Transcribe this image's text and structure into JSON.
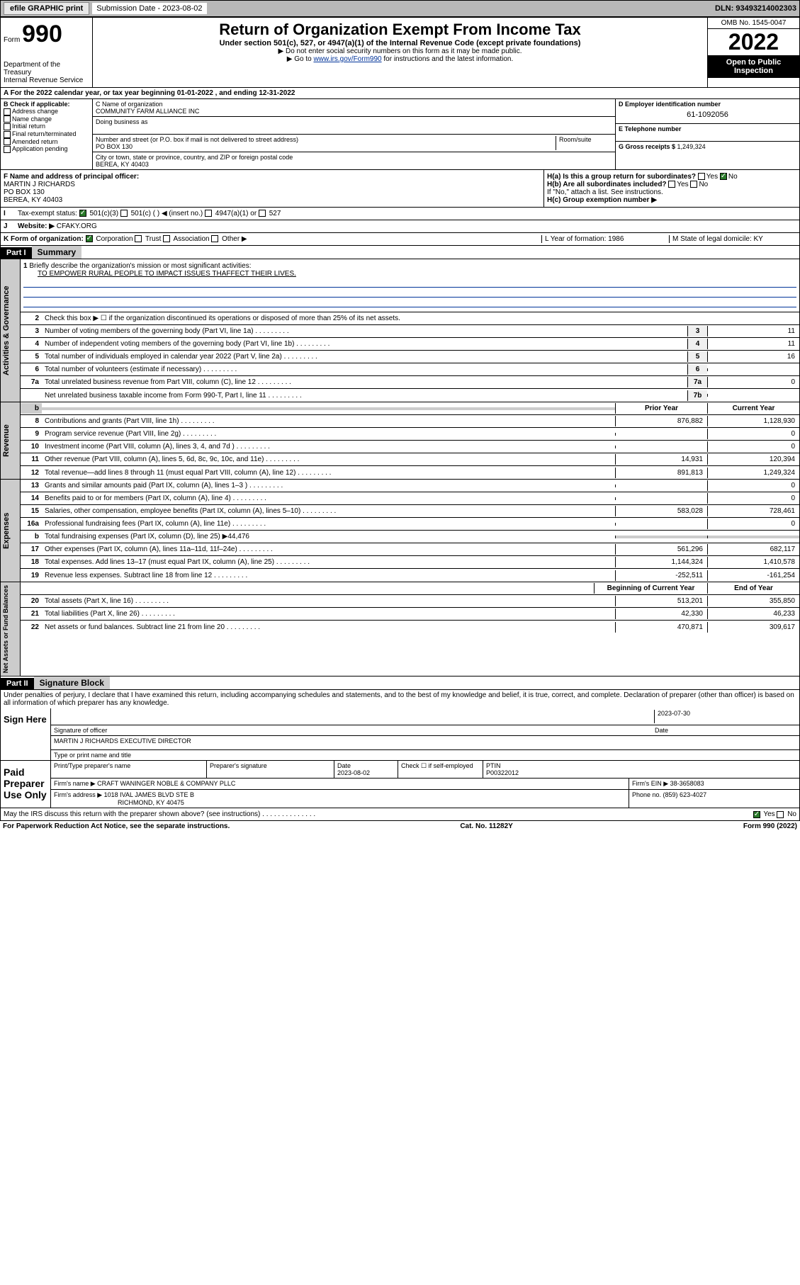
{
  "top": {
    "efile": "efile GRAPHIC print",
    "sub_label": "Submission Date - 2023-08-02",
    "dln": "DLN: 93493214002303"
  },
  "header": {
    "form_prefix": "Form",
    "form_num": "990",
    "title": "Return of Organization Exempt From Income Tax",
    "subtitle": "Under section 501(c), 527, or 4947(a)(1) of the Internal Revenue Code (except private foundations)",
    "note1": "▶ Do not enter social security numbers on this form as it may be made public.",
    "note2_pre": "▶ Go to ",
    "note2_link": "www.irs.gov/Form990",
    "note2_post": " for instructions and the latest information.",
    "omb": "OMB No. 1545-0047",
    "year": "2022",
    "open": "Open to Public Inspection",
    "dept": "Department of the Treasury\nInternal Revenue Service"
  },
  "lineA": "For the 2022 calendar year, or tax year beginning 01-01-2022    , and ending 12-31-2022",
  "colB": {
    "title": "B Check if applicable:",
    "items": [
      "Address change",
      "Name change",
      "Initial return",
      "Final return/terminated",
      "Amended return",
      "Application pending"
    ]
  },
  "colC": {
    "name_label": "C Name of organization",
    "name": "COMMUNITY FARM ALLIANCE INC",
    "dba_label": "Doing business as",
    "street_label": "Number and street (or P.O. box if mail is not delivered to street address)",
    "room_label": "Room/suite",
    "street": "PO BOX 130",
    "city_label": "City or town, state or province, country, and ZIP or foreign postal code",
    "city": "BEREA, KY  40403"
  },
  "colD": {
    "ein_label": "D Employer identification number",
    "ein": "61-1092056",
    "phone_label": "E Telephone number",
    "gross_label": "G Gross receipts $ ",
    "gross": "1,249,324"
  },
  "f": {
    "label": "F  Name and address of principal officer:",
    "name": "MARTIN J RICHARDS",
    "addr1": "PO BOX 130",
    "addr2": "BEREA, KY  40403"
  },
  "h": {
    "a": "H(a)  Is this a group return for subordinates?",
    "b": "H(b)  Are all subordinates included?",
    "b_note": "If \"No,\" attach a list. See instructions.",
    "c": "H(c)  Group exemption number ▶",
    "yes": "Yes",
    "no": "No"
  },
  "i": {
    "label": "Tax-exempt status:",
    "opt1": "501(c)(3)",
    "opt2": "501(c) (  ) ◀ (insert no.)",
    "opt3": "4947(a)(1) or",
    "opt4": "527"
  },
  "j": {
    "label": "Website: ▶",
    "val": "CFAKY.ORG"
  },
  "k": {
    "label": "K Form of organization:",
    "opts": [
      "Corporation",
      "Trust",
      "Association",
      "Other ▶"
    ],
    "l": "L Year of formation: 1986",
    "m": "M State of legal domicile: KY"
  },
  "part1": {
    "hdr": "Part I",
    "title": "Summary",
    "line1_label": "Briefly describe the organization's mission or most significant activities:",
    "line1_val": "TO EMPOWER RURAL PEOPLE TO IMPACT ISSUES THAFFECT THEIR LIVES.",
    "lines_gov": [
      {
        "n": "2",
        "t": "Check this box ▶ ☐  if the organization discontinued its operations or disposed of more than 25% of its net assets."
      },
      {
        "n": "3",
        "t": "Number of voting members of the governing body (Part VI, line 1a)",
        "box": "3",
        "v": "11"
      },
      {
        "n": "4",
        "t": "Number of independent voting members of the governing body (Part VI, line 1b)",
        "box": "4",
        "v": "11"
      },
      {
        "n": "5",
        "t": "Total number of individuals employed in calendar year 2022 (Part V, line 2a)",
        "box": "5",
        "v": "16"
      },
      {
        "n": "6",
        "t": "Total number of volunteers (estimate if necessary)",
        "box": "6",
        "v": ""
      },
      {
        "n": "7a",
        "t": "Total unrelated business revenue from Part VIII, column (C), line 12",
        "box": "7a",
        "v": "0"
      },
      {
        "n": "",
        "t": "Net unrelated business taxable income from Form 990-T, Part I, line 11",
        "box": "7b",
        "v": ""
      }
    ],
    "hdr_prior": "Prior Year",
    "hdr_curr": "Current Year",
    "lines_rev": [
      {
        "n": "8",
        "t": "Contributions and grants (Part VIII, line 1h)",
        "p": "876,882",
        "c": "1,128,930"
      },
      {
        "n": "9",
        "t": "Program service revenue (Part VIII, line 2g)",
        "p": "",
        "c": "0"
      },
      {
        "n": "10",
        "t": "Investment income (Part VIII, column (A), lines 3, 4, and 7d )",
        "p": "",
        "c": "0"
      },
      {
        "n": "11",
        "t": "Other revenue (Part VIII, column (A), lines 5, 6d, 8c, 9c, 10c, and 11e)",
        "p": "14,931",
        "c": "120,394"
      },
      {
        "n": "12",
        "t": "Total revenue—add lines 8 through 11 (must equal Part VIII, column (A), line 12)",
        "p": "891,813",
        "c": "1,249,324"
      }
    ],
    "lines_exp": [
      {
        "n": "13",
        "t": "Grants and similar amounts paid (Part IX, column (A), lines 1–3 )",
        "p": "",
        "c": "0"
      },
      {
        "n": "14",
        "t": "Benefits paid to or for members (Part IX, column (A), line 4)",
        "p": "",
        "c": "0"
      },
      {
        "n": "15",
        "t": "Salaries, other compensation, employee benefits (Part IX, column (A), lines 5–10)",
        "p": "583,028",
        "c": "728,461"
      },
      {
        "n": "16a",
        "t": "Professional fundraising fees (Part IX, column (A), line 11e)",
        "p": "",
        "c": "0"
      },
      {
        "n": "b",
        "t": "Total fundraising expenses (Part IX, column (D), line 25) ▶44,476",
        "p": null,
        "c": null
      },
      {
        "n": "17",
        "t": "Other expenses (Part IX, column (A), lines 11a–11d, 11f–24e)",
        "p": "561,296",
        "c": "682,117"
      },
      {
        "n": "18",
        "t": "Total expenses. Add lines 13–17 (must equal Part IX, column (A), line 25)",
        "p": "1,144,324",
        "c": "1,410,578"
      },
      {
        "n": "19",
        "t": "Revenue less expenses. Subtract line 18 from line 12",
        "p": "-252,511",
        "c": "-161,254"
      }
    ],
    "hdr_begin": "Beginning of Current Year",
    "hdr_end": "End of Year",
    "lines_net": [
      {
        "n": "20",
        "t": "Total assets (Part X, line 16)",
        "p": "513,201",
        "c": "355,850"
      },
      {
        "n": "21",
        "t": "Total liabilities (Part X, line 26)",
        "p": "42,330",
        "c": "46,233"
      },
      {
        "n": "22",
        "t": "Net assets or fund balances. Subtract line 21 from line 20",
        "p": "470,871",
        "c": "309,617"
      }
    ],
    "side_gov": "Activities & Governance",
    "side_rev": "Revenue",
    "side_exp": "Expenses",
    "side_net": "Net Assets or Fund Balances"
  },
  "part2": {
    "hdr": "Part II",
    "title": "Signature Block",
    "penalty": "Under penalties of perjury, I declare that I have examined this return, including accompanying schedules and statements, and to the best of my knowledge and belief, it is true, correct, and complete. Declaration of preparer (other than officer) is based on all information of which preparer has any knowledge.",
    "sign_here": "Sign Here",
    "sig_officer": "Signature of officer",
    "sig_date": "2023-07-30",
    "date_label": "Date",
    "officer_name": "MARTIN J RICHARDS  EXECUTIVE DIRECTOR",
    "type_name": "Type or print name and title",
    "paid": "Paid Preparer Use Only",
    "prep_name_label": "Print/Type preparer's name",
    "prep_sig_label": "Preparer's signature",
    "prep_date_label": "Date",
    "prep_date": "2023-08-02",
    "check_self": "Check ☐ if self-employed",
    "ptin_label": "PTIN",
    "ptin": "P00322012",
    "firm_name_label": "Firm's name    ▶ ",
    "firm_name": "CRAFT WANINGER NOBLE & COMPANY PLLC",
    "firm_ein_label": "Firm's EIN ▶ ",
    "firm_ein": "38-3658083",
    "firm_addr_label": "Firm's address ▶ ",
    "firm_addr1": "1018 IVAL JAMES BLVD STE B",
    "firm_addr2": "RICHMOND, KY  40475",
    "firm_phone_label": "Phone no. ",
    "firm_phone": "(859) 623-4027",
    "discuss": "May the IRS discuss this return with the preparer shown above? (see instructions)"
  },
  "footer": {
    "left": "For Paperwork Reduction Act Notice, see the separate instructions.",
    "mid": "Cat. No. 11282Y",
    "right": "Form 990 (2022)"
  }
}
